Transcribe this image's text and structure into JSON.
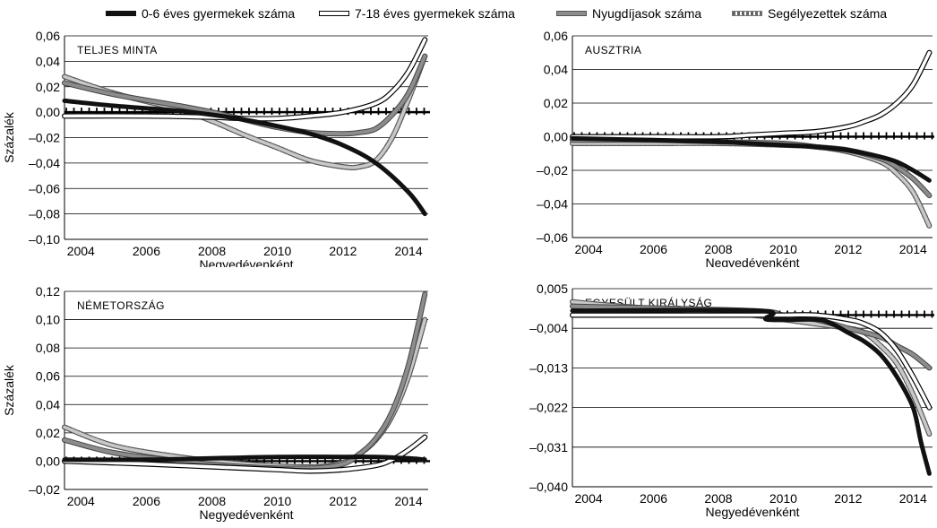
{
  "legend": {
    "items": [
      {
        "label": "0-6 éves gyermekek száma",
        "style": "black"
      },
      {
        "label": "7-18 éves gyermekek száma",
        "style": "white"
      },
      {
        "label": "Nyugdíjasok száma",
        "style": "gray"
      },
      {
        "label": "Segélyezettek száma",
        "style": "dashed"
      }
    ]
  },
  "colors": {
    "black": "#111111",
    "gray": "#8c8c8c",
    "white": "#ffffff",
    "dashed": "#c8c8c8",
    "outline": "#000000"
  },
  "chart_data": [
    {
      "type": "line",
      "panel_label": "TELJES MINTA",
      "ylabel": "Százalék",
      "xlabel": "Negyedévenként",
      "xlim": [
        2003.5,
        2014.6
      ],
      "ylim": [
        -0.1,
        0.06
      ],
      "y_ticks": [
        0.06,
        0.04,
        0.02,
        0.0,
        -0.02,
        -0.04,
        -0.06,
        -0.08,
        -0.1
      ],
      "y_tick_labels": [
        "0,06",
        "0,04",
        "0,02",
        "0,00",
        "–0,02",
        "–0,04",
        "–0,06",
        "–0,08",
        "–0,10"
      ],
      "x_ticks": [
        2004,
        2006,
        2008,
        2010,
        2012,
        2014
      ],
      "x_tick_labels": [
        "2004",
        "2006",
        "2008",
        "2010",
        "2012",
        "2014"
      ],
      "grid": "horizontal",
      "zero_line": true,
      "series": [
        {
          "name": "0-6 éves gyermekek száma",
          "style": "black",
          "x": [
            2003.5,
            2005,
            2007,
            2008,
            2009,
            2010,
            2011,
            2012,
            2013,
            2014,
            2014.5
          ],
          "y": [
            0.009,
            0.005,
            0.001,
            -0.002,
            -0.006,
            -0.011,
            -0.017,
            -0.026,
            -0.04,
            -0.063,
            -0.08
          ]
        },
        {
          "name": "7-18 éves gyermekek száma",
          "style": "white",
          "x": [
            2003.5,
            2006,
            2008,
            2009,
            2010,
            2011,
            2012,
            2013,
            2013.5,
            2014,
            2014.5
          ],
          "y": [
            -0.003,
            -0.003,
            -0.004,
            -0.005,
            -0.005,
            -0.003,
            0.0,
            0.007,
            0.016,
            0.032,
            0.057
          ]
        },
        {
          "name": "Nyugdíjasok száma",
          "style": "gray",
          "x": [
            2003.5,
            2005,
            2007,
            2008,
            2009,
            2010,
            2011,
            2012,
            2012.5,
            2013,
            2013.5,
            2014,
            2014.5
          ],
          "y": [
            0.023,
            0.014,
            0.005,
            0.0,
            -0.006,
            -0.012,
            -0.016,
            -0.017,
            -0.016,
            -0.013,
            -0.002,
            0.015,
            0.044
          ]
        },
        {
          "name": "Segélyezettek száma",
          "style": "dashed",
          "x": [
            2003.5,
            2005,
            2007,
            2008,
            2009,
            2010,
            2011,
            2012,
            2012.5,
            2013,
            2013.5,
            2014,
            2014.5
          ],
          "y": [
            0.028,
            0.015,
            0.002,
            -0.007,
            -0.018,
            -0.028,
            -0.038,
            -0.043,
            -0.043,
            -0.038,
            -0.02,
            0.01,
            0.044
          ]
        }
      ]
    },
    {
      "type": "line",
      "panel_label": "AUSZTRIA",
      "ylabel": "",
      "xlabel": "Negyedévenként",
      "xlim": [
        2003.5,
        2014.6
      ],
      "ylim": [
        -0.06,
        0.06
      ],
      "y_ticks": [
        0.06,
        0.04,
        0.02,
        0.0,
        -0.02,
        -0.04,
        -0.06
      ],
      "y_tick_labels": [
        "0,06",
        "0,04",
        "0,02",
        "0,00",
        "–0,02",
        "–0,04",
        "–0,06"
      ],
      "x_ticks": [
        2004,
        2006,
        2008,
        2010,
        2012,
        2014
      ],
      "x_tick_labels": [
        "2004",
        "2006",
        "2008",
        "2010",
        "2012",
        "2014"
      ],
      "grid": "horizontal",
      "zero_line": true,
      "series": [
        {
          "name": "0-6 éves gyermekek száma",
          "style": "black",
          "x": [
            2003.5,
            2006,
            2008,
            2009,
            2010,
            2011,
            2012,
            2013,
            2013.5,
            2014,
            2014.5
          ],
          "y": [
            -0.001,
            -0.002,
            -0.003,
            -0.004,
            -0.005,
            -0.006,
            -0.008,
            -0.012,
            -0.015,
            -0.02,
            -0.026
          ]
        },
        {
          "name": "7-18 éves gyermekek száma",
          "style": "white",
          "x": [
            2003.5,
            2006,
            2008,
            2009,
            2010,
            2011,
            2012,
            2012.5,
            2013,
            2013.5,
            2014,
            2014.5
          ],
          "y": [
            0.0,
            0.0,
            0.0,
            0.001,
            0.002,
            0.003,
            0.006,
            0.009,
            0.013,
            0.02,
            0.031,
            0.05
          ]
        },
        {
          "name": "Nyugdíjasok száma",
          "style": "gray",
          "x": [
            2003.5,
            2006,
            2008,
            2010,
            2011,
            2012,
            2013,
            2013.5,
            2014,
            2014.5
          ],
          "y": [
            -0.002,
            -0.002,
            -0.003,
            -0.004,
            -0.006,
            -0.008,
            -0.013,
            -0.018,
            -0.025,
            -0.035
          ]
        },
        {
          "name": "Segélyezettek száma",
          "style": "dashed",
          "x": [
            2003.5,
            2006,
            2008,
            2010,
            2011,
            2012,
            2013,
            2013.5,
            2014,
            2014.5
          ],
          "y": [
            -0.004,
            -0.004,
            -0.004,
            -0.005,
            -0.006,
            -0.009,
            -0.015,
            -0.022,
            -0.033,
            -0.053
          ]
        }
      ]
    },
    {
      "type": "line",
      "panel_label": "NÉMETORSZÁG",
      "ylabel": "Százalék",
      "xlabel": "Negyedévenként",
      "xlim": [
        2003.5,
        2014.6
      ],
      "ylim": [
        -0.02,
        0.12
      ],
      "y_ticks": [
        0.12,
        0.1,
        0.08,
        0.06,
        0.04,
        0.02,
        0.0,
        -0.02
      ],
      "y_tick_labels": [
        "0,12",
        "0,10",
        "0,08",
        "0,06",
        "0,04",
        "0,02",
        "0,00",
        "–0,02"
      ],
      "x_ticks": [
        2004,
        2006,
        2008,
        2010,
        2012,
        2014
      ],
      "x_tick_labels": [
        "2004",
        "2006",
        "2008",
        "2010",
        "2012",
        "2014"
      ],
      "grid": "horizontal",
      "zero_line": true,
      "series": [
        {
          "name": "0-6 éves gyermekek száma",
          "style": "black",
          "x": [
            2003.5,
            2006,
            2008,
            2010,
            2012,
            2013,
            2014,
            2014.5
          ],
          "y": [
            0.001,
            0.001,
            0.002,
            0.003,
            0.003,
            0.003,
            0.002,
            0.001
          ]
        },
        {
          "name": "7-18 éves gyermekek száma",
          "style": "white",
          "x": [
            2003.5,
            2006,
            2008,
            2010,
            2011,
            2012,
            2013,
            2013.5,
            2014,
            2014.5
          ],
          "y": [
            0.0,
            -0.002,
            -0.004,
            -0.006,
            -0.007,
            -0.006,
            -0.003,
            0.001,
            0.008,
            0.017
          ]
        },
        {
          "name": "Nyugdíjasok száma",
          "style": "gray",
          "x": [
            2003.5,
            2005,
            2007,
            2009,
            2011,
            2012,
            2012.5,
            2013,
            2013.5,
            2014,
            2014.5
          ],
          "y": [
            0.015,
            0.006,
            0.0,
            -0.004,
            -0.005,
            -0.002,
            0.005,
            0.016,
            0.035,
            0.068,
            0.118
          ]
        },
        {
          "name": "Segélyezettek száma",
          "style": "dashed",
          "x": [
            2003.5,
            2005,
            2007,
            2009,
            2011,
            2012,
            2012.5,
            2013,
            2013.5,
            2014,
            2014.5
          ],
          "y": [
            0.024,
            0.011,
            0.003,
            -0.002,
            -0.004,
            -0.001,
            0.005,
            0.015,
            0.032,
            0.06,
            0.1
          ]
        }
      ]
    },
    {
      "type": "line",
      "panel_label": "EGYESÜLT KIRÁLYSÁG",
      "ylabel": "",
      "xlabel": "Negyedévenként",
      "xlim": [
        2003.5,
        2014.6
      ],
      "ylim": [
        -0.04,
        0.005
      ],
      "y_ticks": [
        0.005,
        -0.004,
        -0.013,
        -0.022,
        -0.031,
        -0.04
      ],
      "y_tick_labels": [
        "0,005",
        "–0,004",
        "–0,013",
        "–0,022",
        "–0,031",
        "–0,040"
      ],
      "x_ticks": [
        2004,
        2006,
        2008,
        2010,
        2012,
        2014
      ],
      "x_tick_labels": [
        "2004",
        "2006",
        "2008",
        "2010",
        "2012",
        "2014"
      ],
      "grid": "horizontal",
      "zero_line": true,
      "zero_line_value": -0.001,
      "series": [
        {
          "name": "0-6 éves gyermekek száma",
          "style": "black",
          "x": [
            2003.5,
            2009.25,
            2009.5,
            2011,
            2011.5,
            2012,
            2012.5,
            2013,
            2013.5,
            2014,
            2014.25,
            2014.5
          ],
          "y": [
            0.0,
            0.0,
            -0.002,
            -0.002,
            -0.003,
            -0.005,
            -0.007,
            -0.01,
            -0.015,
            -0.022,
            -0.03,
            -0.037
          ]
        },
        {
          "name": "7-18 éves gyermekek száma",
          "style": "white",
          "x": [
            2003.5,
            2009,
            2010,
            2011,
            2012,
            2012.5,
            2013,
            2013.5,
            2014,
            2014.5
          ],
          "y": [
            -0.001,
            -0.001,
            -0.001,
            -0.001,
            -0.002,
            -0.003,
            -0.005,
            -0.009,
            -0.015,
            -0.022
          ]
        },
        {
          "name": "Nyugdíjasok száma",
          "style": "gray",
          "x": [
            2003.5,
            2009,
            2010,
            2011,
            2012,
            2013,
            2013.5,
            2014,
            2014.5
          ],
          "y": [
            0.001,
            0.0,
            -0.001,
            -0.002,
            -0.004,
            -0.006,
            -0.008,
            -0.01,
            -0.013
          ]
        },
        {
          "name": "Segélyezettek száma",
          "style": "dashed",
          "x": [
            2003.5,
            2005,
            2007,
            2009,
            2010,
            2011,
            2012,
            2012.5,
            2013,
            2013.5,
            2014,
            2014.5
          ],
          "y": [
            0.002,
            0.001,
            0.0,
            -0.001,
            -0.002,
            -0.003,
            -0.004,
            -0.005,
            -0.008,
            -0.012,
            -0.019,
            -0.028
          ]
        }
      ]
    }
  ]
}
